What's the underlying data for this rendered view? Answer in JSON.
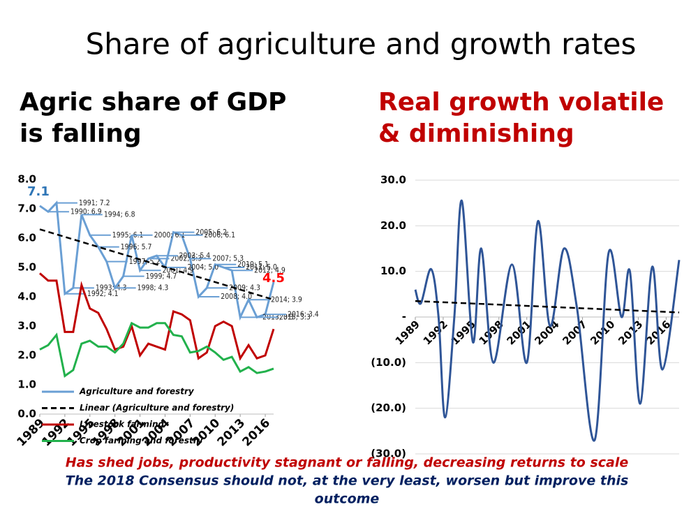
{
  "title": "Share of agriculture and growth rates",
  "left_heading": [
    "Agric share of GDP",
    "is falling"
  ],
  "right_heading": [
    "Real growth volatile",
    "& diminishing"
  ],
  "footer": [
    "Has shed jobs, productivity stagnant or falling, decreasing returns to scale",
    "The 2018 Consensus should not, at the very least, worsen but improve this",
    "outcome"
  ],
  "chart_data": [
    {
      "type": "line",
      "x": [
        1989,
        1990,
        1991,
        1992,
        1993,
        1994,
        1995,
        1996,
        1997,
        1998,
        1999,
        2000,
        2001,
        2002,
        2003,
        2004,
        2005,
        2006,
        2007,
        2008,
        2009,
        2010,
        2011,
        2012,
        2013,
        2014,
        2015,
        2016,
        2017
      ],
      "xlim": [
        1989,
        2017
      ],
      "xticks": [
        1989,
        1992,
        1995,
        1998,
        2001,
        2004,
        2007,
        2010,
        2013,
        2016
      ],
      "ylim": [
        0,
        8
      ],
      "yticks": [
        {
          "value": 0,
          "label": "0.0"
        },
        {
          "value": 1,
          "label": "1.0"
        },
        {
          "value": 2,
          "label": "2.0"
        },
        {
          "value": 3,
          "label": "3.0"
        },
        {
          "value": 4,
          "label": "4.0"
        },
        {
          "value": 5,
          "label": "5.0"
        },
        {
          "value": 6,
          "label": "6.0"
        },
        {
          "value": 7,
          "label": "7.0"
        },
        {
          "value": 8,
          "label": "8.0"
        }
      ],
      "series": [
        {
          "name": "Agriculture and forestry",
          "color": "#6a9fd4",
          "values": [
            7.1,
            6.9,
            7.2,
            4.1,
            4.3,
            6.8,
            6.1,
            5.7,
            5.2,
            4.3,
            4.7,
            6.1,
            4.9,
            5.3,
            5.4,
            5.0,
            6.2,
            6.1,
            5.3,
            4.0,
            4.3,
            5.1,
            5.0,
            4.9,
            3.3,
            3.9,
            3.3,
            3.4,
            4.5
          ],
          "value_labels": [
            "7.1",
            "1990; 6.9",
            "1991; 7.2",
            "1992; 4.1",
            "1993; 4.3",
            "1994; 6.8",
            "1995; 6.1",
            "1996; 5.7",
            "1997; 5.2",
            "1998; 4.3",
            "1999; 4.7",
            "2000; 6.1",
            "2001; 4.9",
            "2002; 5.3",
            "2003; 5.4",
            "2004; 5.0",
            "2005; 6.2",
            "2006; 6.1",
            "2007; 5.3",
            "2008; 4.0",
            "2009; 4.3",
            "2010; 5.1",
            "2011; 5.0",
            "2012; 4.9",
            "2013; 3.3",
            "2014; 3.9",
            "2015; 3.3",
            "2016; 3.4",
            "4.5"
          ]
        },
        {
          "name": "Linear (Agriculture and forestry)",
          "color": "#000000",
          "dashed": true,
          "x": [
            1989,
            2017
          ],
          "values": [
            6.3,
            3.9
          ]
        },
        {
          "name": "Livestock farming",
          "color": "#c00000",
          "values": [
            4.8,
            4.55,
            4.55,
            2.8,
            2.8,
            4.4,
            3.6,
            3.45,
            2.9,
            2.2,
            2.3,
            3.0,
            2.0,
            2.4,
            2.3,
            2.2,
            3.5,
            3.4,
            3.2,
            1.9,
            2.1,
            3.0,
            3.15,
            3.0,
            1.9,
            2.35,
            1.9,
            2.0,
            2.9
          ]
        },
        {
          "name": "Crop farming and forestry",
          "color": "#22b14c",
          "values": [
            2.2,
            2.35,
            2.7,
            1.3,
            1.5,
            2.4,
            2.5,
            2.3,
            2.3,
            2.1,
            2.4,
            3.1,
            2.95,
            2.95,
            3.1,
            3.1,
            2.7,
            2.65,
            2.1,
            2.15,
            2.3,
            2.1,
            1.85,
            1.95,
            1.45,
            1.6,
            1.4,
            1.45,
            1.55
          ]
        }
      ]
    },
    {
      "type": "line",
      "xlim": [
        1989,
        2017.4
      ],
      "xticks": [
        1989,
        1992,
        1995,
        1998,
        2001,
        2004,
        2007,
        2010,
        2013,
        2016
      ],
      "ylim": [
        -30,
        30
      ],
      "yticks": [
        {
          "value": 30,
          "label": "30.0"
        },
        {
          "value": 20,
          "label": "20.0"
        },
        {
          "value": 10,
          "label": "10.0"
        },
        {
          "value": 0,
          "label": "-"
        },
        {
          "value": -10,
          "label": "(10.0)"
        },
        {
          "value": -20,
          "label": "(20.0)"
        },
        {
          "value": -30,
          "label": "(30.0)"
        }
      ],
      "grid": true,
      "series": [
        {
          "color": "#2f5597",
          "x": [
            1989.0,
            1989.6,
            1990.7,
            1991.5,
            1992.2,
            1993.2,
            1994.0,
            1995.2,
            1996.1,
            1997.4,
            1999.4,
            2001.0,
            2002.2,
            2003.5,
            2005.0,
            2006.4,
            2008.3,
            2009.8,
            2011.2,
            2012.1,
            2013.2,
            2014.5,
            2015.6,
            2017.4
          ],
          "values": [
            6,
            3,
            10.5,
            0,
            -22,
            0,
            25.5,
            -5.5,
            15,
            -10,
            11.5,
            -10,
            21,
            -2,
            15,
            2,
            -27,
            14,
            0,
            10,
            -19,
            11,
            -11.5,
            12.5
          ]
        },
        {
          "color": "#000000",
          "dashed": true,
          "x": [
            1989,
            2017.4
          ],
          "values": [
            3.5,
            1
          ]
        }
      ]
    }
  ]
}
